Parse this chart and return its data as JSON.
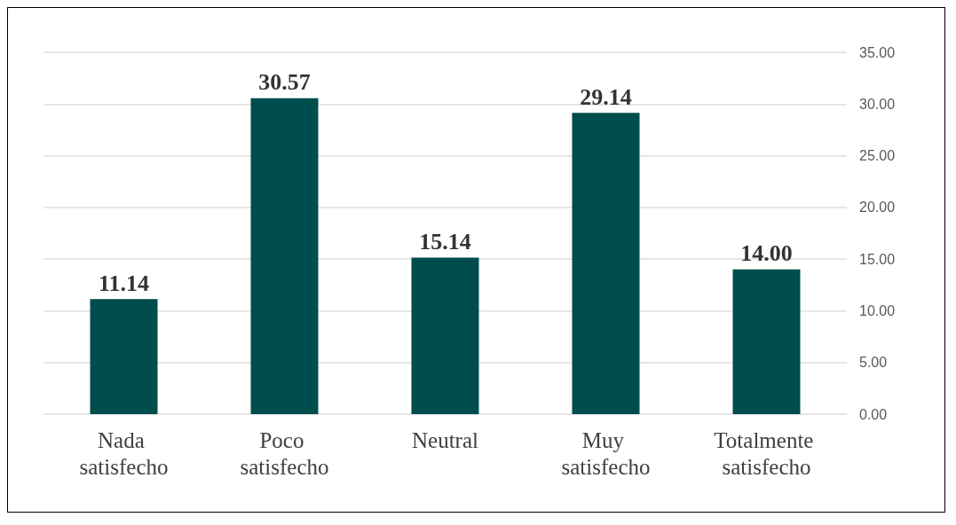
{
  "chart_data": {
    "type": "bar",
    "categories": [
      "Nada satisfecho",
      "Poco satisfecho",
      "Neutral",
      "Muy satisfecho",
      "Totalmente satisfecho"
    ],
    "values": [
      11.14,
      30.57,
      15.14,
      29.14,
      14.0
    ],
    "value_labels": [
      "11.14",
      "30.57",
      "15.14",
      "29.14",
      "14.00"
    ],
    "color": "#004d4d",
    "ylim": [
      0,
      35
    ],
    "yticks": [
      {
        "value": 0,
        "label": "0.00"
      },
      {
        "value": 5,
        "label": "5.00"
      },
      {
        "value": 10,
        "label": "10.00"
      },
      {
        "value": 15,
        "label": "15.00"
      },
      {
        "value": 20,
        "label": "20.00"
      },
      {
        "value": 25,
        "label": "25.00"
      },
      {
        "value": 30,
        "label": "30.00"
      },
      {
        "value": 35,
        "label": "35.00"
      }
    ],
    "grid": "y"
  }
}
